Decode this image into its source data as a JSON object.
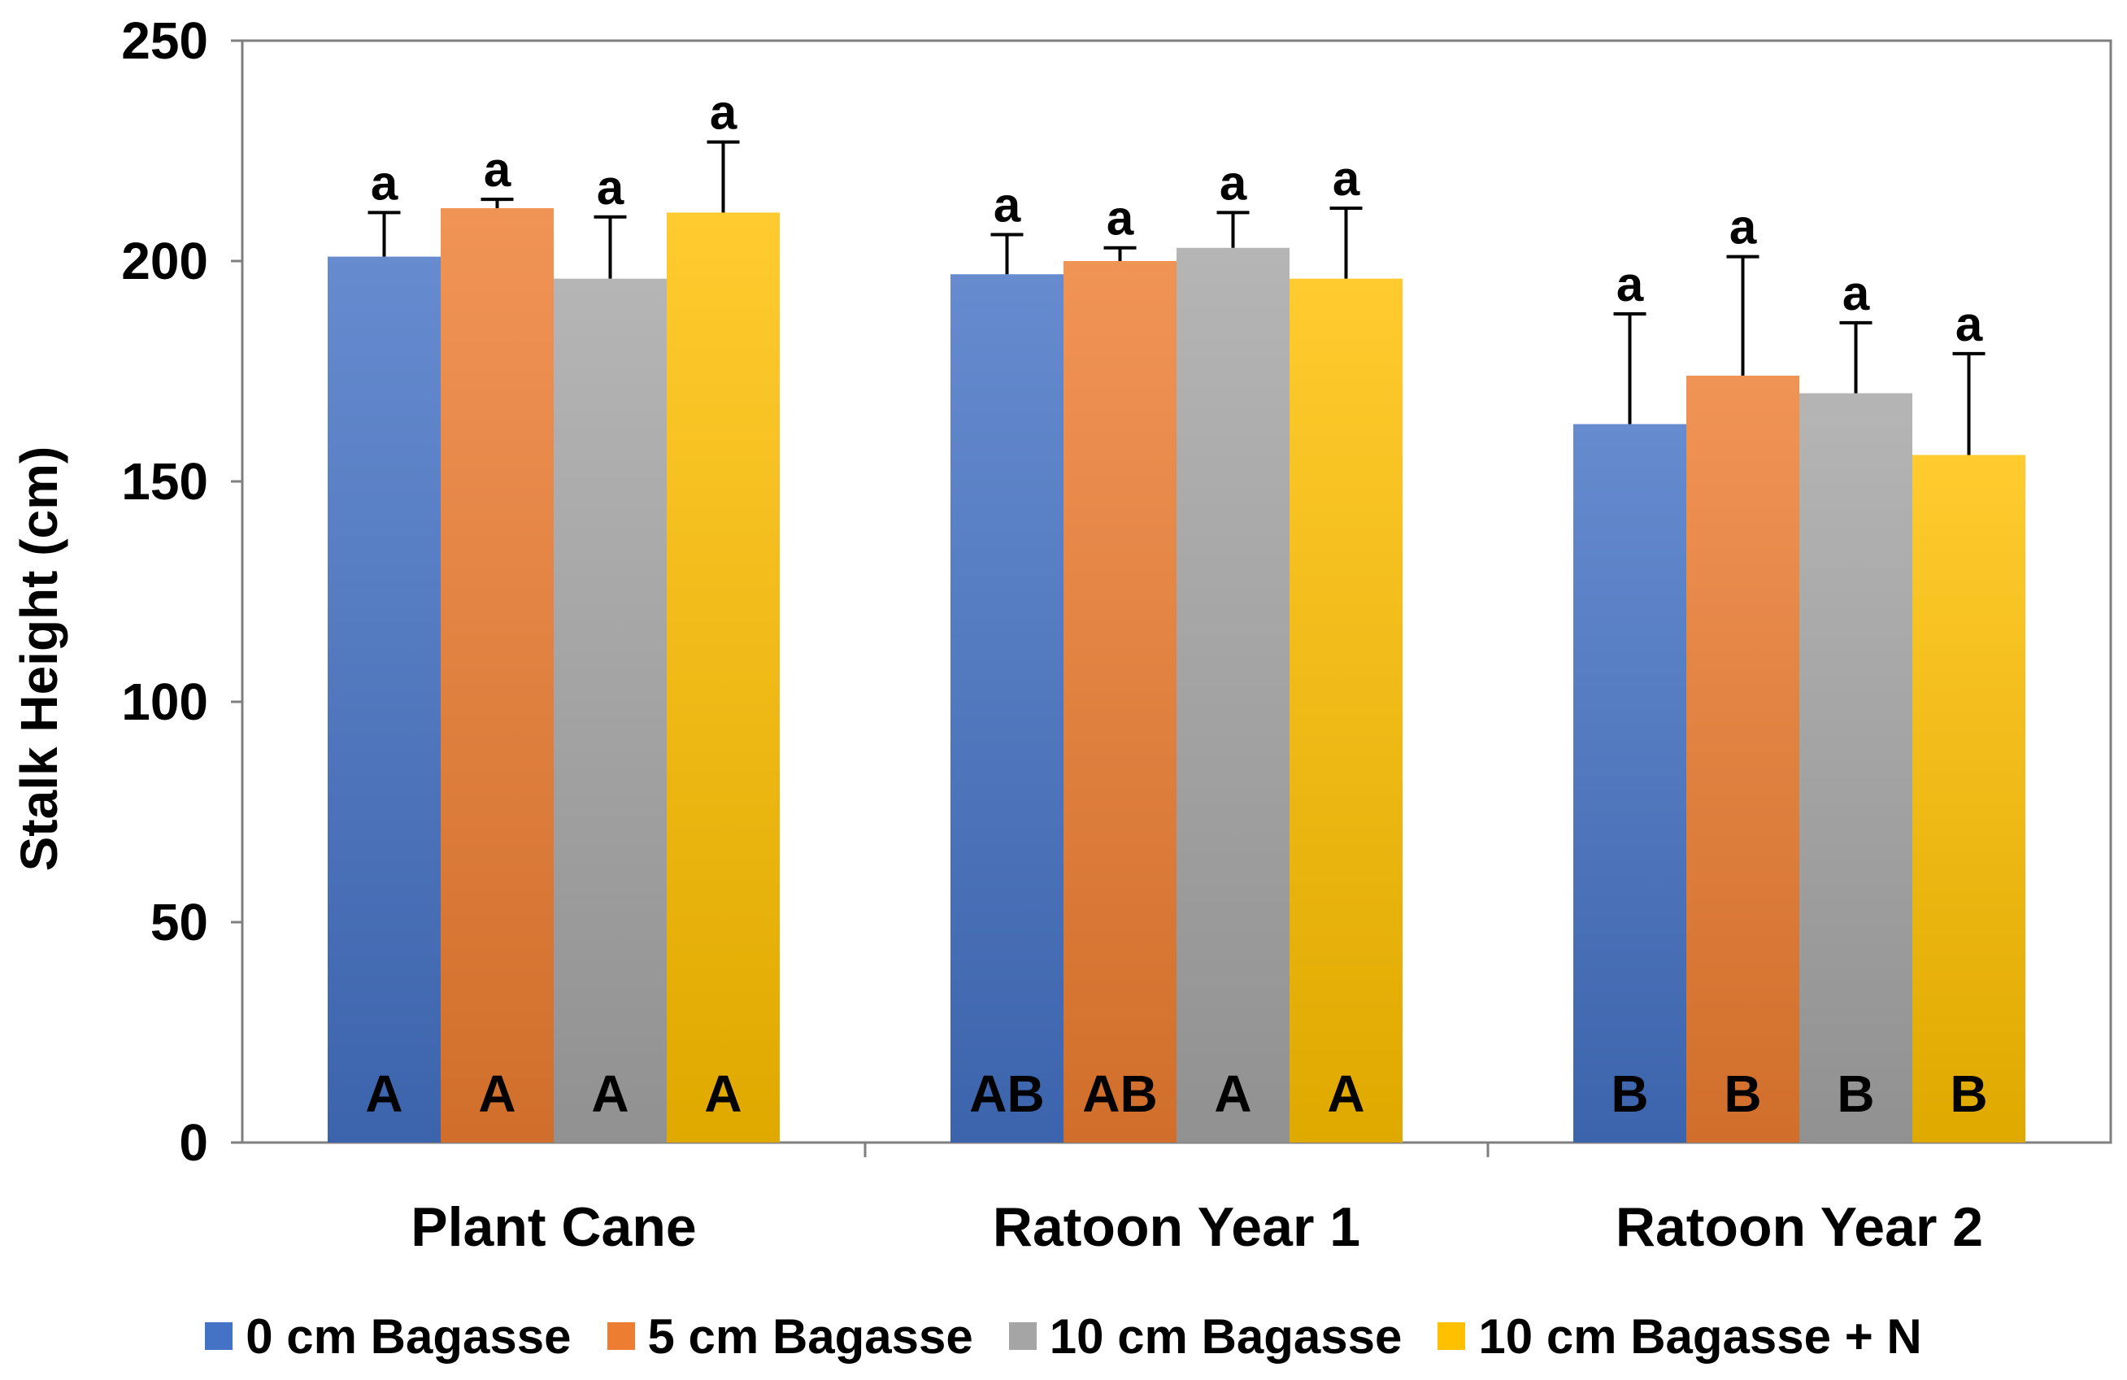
{
  "chart_data": {
    "type": "bar",
    "title": "",
    "xlabel": "",
    "ylabel": "Stalk Height (cm)",
    "ylim": [
      0,
      250
    ],
    "yticks": [
      0,
      50,
      100,
      150,
      200,
      250
    ],
    "grid": false,
    "legend_position": "bottom",
    "categories": [
      "Plant Cane",
      "Ratoon Year 1",
      "Ratoon Year 2"
    ],
    "series": [
      {
        "name": "0 cm Bagasse",
        "color": "#4472C4",
        "values": [
          201,
          197,
          163
        ],
        "error": [
          10,
          9,
          25
        ],
        "letters_top": [
          "a",
          "a",
          "a"
        ],
        "letters_base": [
          "A",
          "AB",
          "B"
        ]
      },
      {
        "name": "5 cm Bagasse",
        "color": "#ED7D31",
        "values": [
          212,
          200,
          174
        ],
        "error": [
          2,
          3,
          27
        ],
        "letters_top": [
          "a",
          "a",
          "a"
        ],
        "letters_base": [
          "A",
          "AB",
          "B"
        ]
      },
      {
        "name": "10 cm Bagasse",
        "color": "#A5A5A5",
        "values": [
          196,
          203,
          170
        ],
        "error": [
          14,
          8,
          16
        ],
        "letters_top": [
          "a",
          "a",
          "a"
        ],
        "letters_base": [
          "A",
          "A",
          "B"
        ]
      },
      {
        "name": "10 cm Bagasse + N",
        "color": "#FFC000",
        "values": [
          211,
          196,
          156
        ],
        "error": [
          16,
          16,
          23
        ],
        "letters_top": [
          "a",
          "a",
          "a"
        ],
        "letters_base": [
          "A",
          "A",
          "B"
        ]
      }
    ]
  }
}
